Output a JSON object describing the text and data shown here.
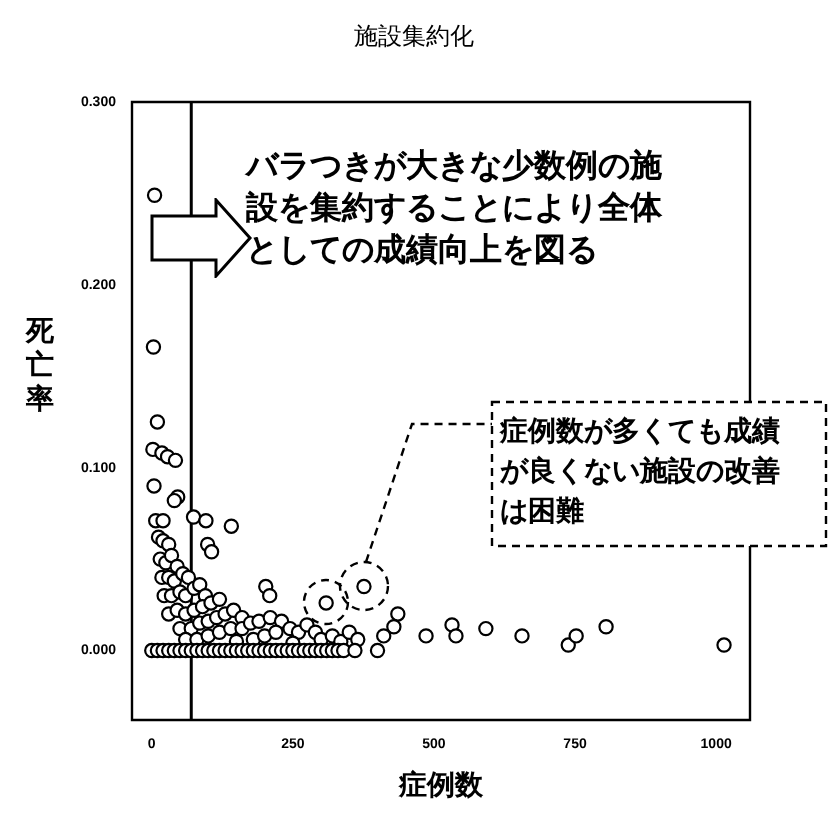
{
  "chart_data": {
    "type": "scatter",
    "title": "施設集約化",
    "xlabel": "症例数",
    "ylabel": "死亡率",
    "annotations": [
      "バラつきが大きな少数例の施設を集約することにより全体としての成績向上を図る",
      "症例数が多くても成績が良くない施設の改善は困難"
    ],
    "x": [
      5,
      3,
      10,
      2,
      18,
      28,
      42,
      4,
      46,
      40,
      7,
      20,
      74,
      96,
      141,
      99,
      106,
      202,
      209,
      309,
      376,
      436,
      429,
      411,
      486,
      532,
      539,
      592,
      656,
      738,
      752,
      805,
      1014,
      12,
      20,
      30,
      15,
      25,
      35,
      45,
      18,
      30,
      40,
      55,
      65,
      22,
      35,
      50,
      60,
      75,
      85,
      95,
      30,
      45,
      60,
      75,
      90,
      105,
      120,
      50,
      70,
      85,
      100,
      115,
      130,
      145,
      160,
      60,
      80,
      100,
      120,
      140,
      160,
      175,
      190,
      210,
      230,
      150,
      180,
      200,
      220,
      245,
      260,
      275,
      290,
      300,
      320,
      335,
      250,
      350,
      365,
      0,
      10,
      20,
      30,
      40,
      50,
      60,
      70,
      80,
      90,
      100,
      110,
      120,
      130,
      140,
      150,
      160,
      170,
      180,
      190,
      200,
      210,
      220,
      230,
      240,
      250,
      260,
      270,
      280,
      290,
      300,
      310,
      320,
      330,
      340,
      360,
      400
    ],
    "series": [
      {
        "color": "#000000",
        "values": [
          0.249,
          0.166,
          0.125,
          0.11,
          0.108,
          0.106,
          0.104,
          0.09,
          0.084,
          0.082,
          0.071,
          0.071,
          0.073,
          0.071,
          0.068,
          0.058,
          0.054,
          0.035,
          0.03,
          0.026,
          0.035,
          0.02,
          0.013,
          0.008,
          0.008,
          0.014,
          0.008,
          0.012,
          0.008,
          0.003,
          0.008,
          0.013,
          0.003,
          0.062,
          0.06,
          0.058,
          0.05,
          0.048,
          0.052,
          0.046,
          0.04,
          0.04,
          0.038,
          0.042,
          0.04,
          0.03,
          0.03,
          0.032,
          0.03,
          0.034,
          0.036,
          0.03,
          0.02,
          0.022,
          0.02,
          0.022,
          0.024,
          0.026,
          0.028,
          0.012,
          0.012,
          0.015,
          0.016,
          0.018,
          0.02,
          0.022,
          0.018,
          0.006,
          0.006,
          0.008,
          0.01,
          0.012,
          0.012,
          0.015,
          0.016,
          0.018,
          0.016,
          0.005,
          0.006,
          0.008,
          0.01,
          0.012,
          0.01,
          0.014,
          0.01,
          0.006,
          0.008,
          0.005,
          0.004,
          0.01,
          0.006,
          0,
          0,
          0,
          0,
          0,
          0,
          0,
          0,
          0,
          0,
          0,
          0,
          0,
          0,
          0,
          0,
          0,
          0,
          0,
          0,
          0,
          0,
          0,
          0,
          0,
          0,
          0,
          0,
          0,
          0,
          0,
          0,
          0,
          0,
          0,
          0,
          0
        ]
      }
    ],
    "xlim": [
      -35,
      1060
    ],
    "ylim": [
      -0.038,
      0.3
    ],
    "xticks": [
      0,
      250,
      500,
      750,
      1000
    ],
    "yticks": [
      {
        "value": 0,
        "label": "0.000"
      },
      {
        "value": 0.1,
        "label": "0.100"
      },
      {
        "value": 0.2,
        "label": "0.200"
      },
      {
        "value": 0.3,
        "label": "0.300"
      }
    ],
    "ref_lines": [
      {
        "axis": "x",
        "value": 70,
        "color": "#000000"
      }
    ],
    "grid": false,
    "legend": false,
    "marker": "circle"
  }
}
